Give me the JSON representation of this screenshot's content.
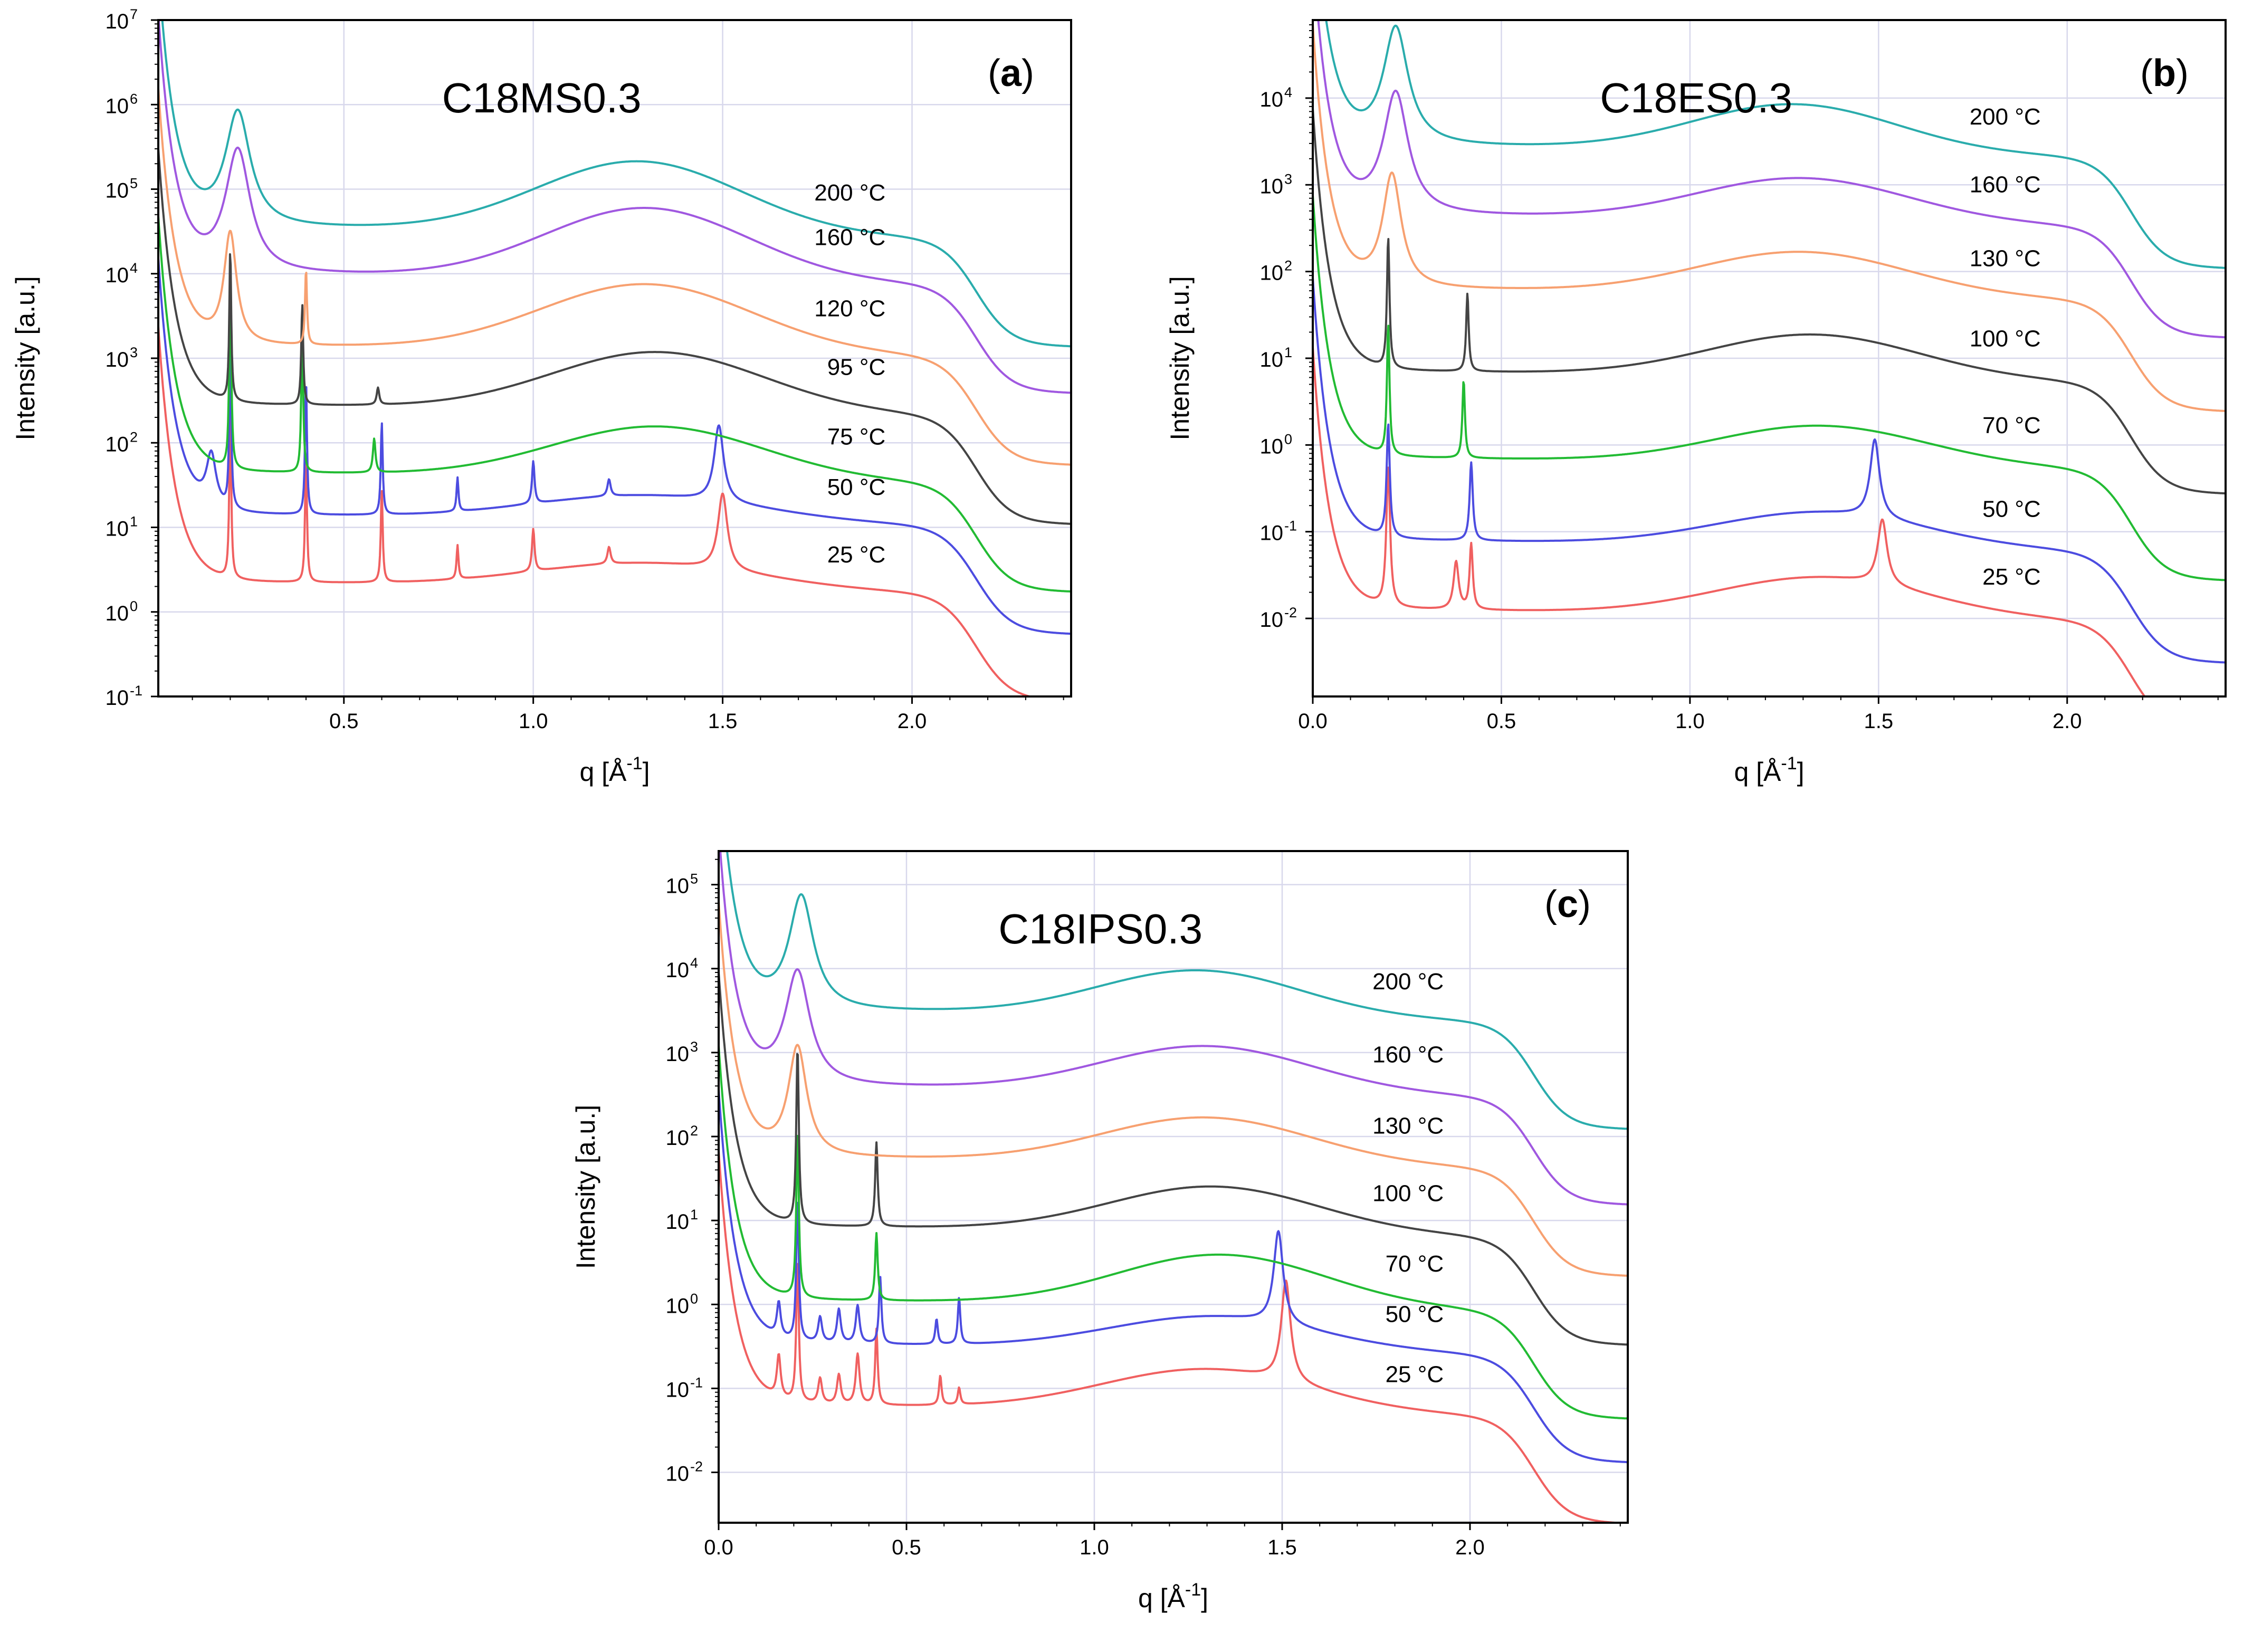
{
  "chart_data": [
    {
      "id": "a",
      "type": "line",
      "title": "C18MS0.3",
      "panel_label_open": "(",
      "panel_label_letter": "a",
      "panel_label_close": ")",
      "xlabel": "q [Å⁻¹]",
      "xlabel_prefix": "q [Å",
      "xlabel_sup": "-1",
      "xlabel_suffix": "]",
      "ylabel": "Intensity [a.u.]",
      "yscale": "log",
      "xlim": [
        0.01,
        2.42
      ],
      "ylim": [
        -1,
        7
      ],
      "x_ticks": [
        0.5,
        1.0,
        1.5,
        2.0
      ],
      "x_tick_labels": [
        "0.5",
        "1.0",
        "1.5",
        "2.0"
      ],
      "y_tick_exponents": [
        -1,
        0,
        1,
        2,
        3,
        4,
        5,
        6,
        7
      ],
      "y_tick_base": "10",
      "y_tick_labels": [
        "-1",
        "0",
        "1",
        "2",
        "3",
        "4",
        "5",
        "6",
        "7"
      ],
      "series": [
        {
          "name": "25 °C",
          "color": "#f06060",
          "base": 0.3,
          "broad_peak": {
            "x": 1.3,
            "h": 0.3,
            "w": 0.3
          },
          "peaks": [
            {
              "x": 0.2,
              "h": 2.0,
              "w": 0.003
            },
            {
              "x": 0.4,
              "h": 1.5,
              "w": 0.003
            },
            {
              "x": 0.6,
              "h": 1.1,
              "w": 0.003
            },
            {
              "x": 0.8,
              "h": 0.4,
              "w": 0.003
            },
            {
              "x": 1.0,
              "h": 0.5,
              "w": 0.004
            },
            {
              "x": 1.2,
              "h": 0.2,
              "w": 0.005
            },
            {
              "x": 1.5,
              "h": 0.9,
              "w": 0.015
            }
          ]
        },
        {
          "name": "50 °C",
          "color": "#4c4ce0",
          "base": 1.1,
          "broad_peak": {
            "x": 1.3,
            "h": 0.3,
            "w": 0.3
          },
          "peaks": [
            {
              "x": 0.15,
              "h": 0.6,
              "w": 0.015
            },
            {
              "x": 0.2,
              "h": 2.0,
              "w": 0.003
            },
            {
              "x": 0.4,
              "h": 1.6,
              "w": 0.003
            },
            {
              "x": 0.6,
              "h": 1.1,
              "w": 0.003
            },
            {
              "x": 0.8,
              "h": 0.4,
              "w": 0.003
            },
            {
              "x": 1.0,
              "h": 0.5,
              "w": 0.004
            },
            {
              "x": 1.2,
              "h": 0.2,
              "w": 0.005
            },
            {
              "x": 1.49,
              "h": 0.9,
              "w": 0.015
            }
          ]
        },
        {
          "name": "75 °C",
          "color": "#22bb33",
          "base": 1.6,
          "broad_peak": {
            "x": 1.33,
            "h": 0.62,
            "w": 0.28
          },
          "peaks": [
            {
              "x": 0.2,
              "h": 2.5,
              "w": 0.003
            },
            {
              "x": 0.39,
              "h": 1.7,
              "w": 0.003
            },
            {
              "x": 0.58,
              "h": 0.4,
              "w": 0.004
            }
          ]
        },
        {
          "name": "95 °C",
          "color": "#444444",
          "base": 2.4,
          "broad_peak": {
            "x": 1.33,
            "h": 0.7,
            "w": 0.28
          },
          "peaks": [
            {
              "x": 0.2,
              "h": 1.8,
              "w": 0.003
            },
            {
              "x": 0.39,
              "h": 1.2,
              "w": 0.003
            },
            {
              "x": 0.59,
              "h": 0.2,
              "w": 0.004
            }
          ]
        },
        {
          "name": "120 °C",
          "color": "#f7a070",
          "base": 3.1,
          "broad_peak": {
            "x": 1.3,
            "h": 0.8,
            "w": 0.28
          },
          "peaks": [
            {
              "x": 0.2,
              "h": 1.3,
              "w": 0.02
            },
            {
              "x": 0.4,
              "h": 0.9,
              "w": 0.003
            }
          ]
        },
        {
          "name": "160 °C",
          "color": "#a058e0",
          "base": 3.95,
          "broad_peak": {
            "x": 1.3,
            "h": 0.85,
            "w": 0.27
          },
          "peaks": [
            {
              "x": 0.22,
              "h": 1.45,
              "w": 0.04
            }
          ]
        },
        {
          "name": "200 °C",
          "color": "#2aacac",
          "base": 4.5,
          "broad_peak": {
            "x": 1.28,
            "h": 0.85,
            "w": 0.27
          },
          "peaks": [
            {
              "x": 0.22,
              "h": 1.35,
              "w": 0.04
            }
          ]
        }
      ]
    },
    {
      "id": "b",
      "type": "line",
      "title": "C18ES0.3",
      "panel_label_open": "(",
      "panel_label_letter": "b",
      "panel_label_close": ")",
      "xlabel": "q [Å⁻¹]",
      "xlabel_prefix": "q [Å",
      "xlabel_sup": "-1",
      "xlabel_suffix": "]",
      "ylabel": "Intensity [a.u.]",
      "yscale": "log",
      "xlim": [
        0.0,
        2.42
      ],
      "ylim": [
        -2.9,
        4.9
      ],
      "x_ticks": [
        0.0,
        0.5,
        1.0,
        1.5,
        2.0
      ],
      "x_tick_labels": [
        "0.0",
        "0.5",
        "1.0",
        "1.5",
        "2.0"
      ],
      "y_tick_exponents": [
        -2,
        -1,
        0,
        1,
        2,
        3,
        4
      ],
      "y_tick_base": "10",
      "y_tick_labels": [
        "-2",
        "-1",
        "0",
        "1",
        "2",
        "3",
        "4"
      ],
      "series": [
        {
          "name": "25 °C",
          "color": "#f06060",
          "base": -1.95,
          "broad_peak": {
            "x": 1.35,
            "h": 0.45,
            "w": 0.28
          },
          "peaks": [
            {
              "x": 0.2,
              "h": 1.6,
              "w": 0.006
            },
            {
              "x": 0.38,
              "h": 0.55,
              "w": 0.008
            },
            {
              "x": 0.42,
              "h": 0.75,
              "w": 0.005
            },
            {
              "x": 1.51,
              "h": 0.75,
              "w": 0.015
            }
          ]
        },
        {
          "name": "50 °C",
          "color": "#4c4ce0",
          "base": -1.15,
          "broad_peak": {
            "x": 1.35,
            "h": 0.4,
            "w": 0.28
          },
          "peaks": [
            {
              "x": 0.2,
              "h": 1.3,
              "w": 0.005
            },
            {
              "x": 0.42,
              "h": 0.9,
              "w": 0.005
            },
            {
              "x": 1.49,
              "h": 0.9,
              "w": 0.015
            }
          ]
        },
        {
          "name": "70 °C",
          "color": "#22bb33",
          "base": -0.2,
          "broad_peak": {
            "x": 1.35,
            "h": 0.45,
            "w": 0.28
          },
          "peaks": [
            {
              "x": 0.2,
              "h": 1.5,
              "w": 0.004
            },
            {
              "x": 0.4,
              "h": 0.9,
              "w": 0.004
            }
          ]
        },
        {
          "name": "100 °C",
          "color": "#444444",
          "base": 0.8,
          "broad_peak": {
            "x": 1.33,
            "h": 0.5,
            "w": 0.28
          },
          "peaks": [
            {
              "x": 0.2,
              "h": 1.5,
              "w": 0.004
            },
            {
              "x": 0.41,
              "h": 0.9,
              "w": 0.004
            }
          ]
        },
        {
          "name": "130 °C",
          "color": "#f7a070",
          "base": 1.75,
          "broad_peak": {
            "x": 1.3,
            "h": 0.5,
            "w": 0.28
          },
          "peaks": [
            {
              "x": 0.21,
              "h": 1.3,
              "w": 0.03
            }
          ]
        },
        {
          "name": "160 °C",
          "color": "#a058e0",
          "base": 2.6,
          "broad_peak": {
            "x": 1.3,
            "h": 0.5,
            "w": 0.28
          },
          "peaks": [
            {
              "x": 0.22,
              "h": 1.4,
              "w": 0.04
            }
          ]
        },
        {
          "name": "200 °C",
          "color": "#2aacac",
          "base": 3.4,
          "broad_peak": {
            "x": 1.28,
            "h": 0.55,
            "w": 0.27
          },
          "peaks": [
            {
              "x": 0.22,
              "h": 1.35,
              "w": 0.04
            }
          ]
        }
      ]
    },
    {
      "id": "c",
      "type": "line",
      "title": "C18IPS0.3",
      "panel_label_open": "(",
      "panel_label_letter": "c",
      "panel_label_close": ")",
      "xlabel": "q [Å⁻¹]",
      "xlabel_prefix": "q [Å",
      "xlabel_sup": "-1",
      "xlabel_suffix": "]",
      "ylabel": "Intensity [a.u.]",
      "yscale": "log",
      "xlim": [
        0.0,
        2.42
      ],
      "ylim": [
        -2.6,
        5.4
      ],
      "x_ticks": [
        0.0,
        0.5,
        1.0,
        1.5,
        2.0
      ],
      "x_tick_labels": [
        "0.0",
        "0.5",
        "1.0",
        "1.5",
        "2.0"
      ],
      "y_tick_exponents": [
        -2,
        -1,
        0,
        1,
        2,
        3,
        4,
        5
      ],
      "y_tick_base": "10",
      "y_tick_labels": [
        "-2",
        "-1",
        "0",
        "1",
        "2",
        "3",
        "4",
        "5"
      ],
      "series": [
        {
          "name": "25 °C",
          "color": "#f06060",
          "base": -1.25,
          "broad_peak": {
            "x": 1.3,
            "h": 0.5,
            "w": 0.28
          },
          "peaks": [
            {
              "x": 0.16,
              "h": 0.5,
              "w": 0.006
            },
            {
              "x": 0.21,
              "h": 1.7,
              "w": 0.004
            },
            {
              "x": 0.27,
              "h": 0.3,
              "w": 0.006
            },
            {
              "x": 0.32,
              "h": 0.35,
              "w": 0.006
            },
            {
              "x": 0.37,
              "h": 0.6,
              "w": 0.006
            },
            {
              "x": 0.42,
              "h": 0.9,
              "w": 0.004
            },
            {
              "x": 0.59,
              "h": 0.35,
              "w": 0.004
            },
            {
              "x": 0.64,
              "h": 0.2,
              "w": 0.004
            },
            {
              "x": 1.51,
              "h": 1.2,
              "w": 0.015
            }
          ]
        },
        {
          "name": "50 °C",
          "color": "#4c4ce0",
          "base": -0.52,
          "broad_peak": {
            "x": 1.32,
            "h": 0.4,
            "w": 0.28
          },
          "peaks": [
            {
              "x": 0.16,
              "h": 0.4,
              "w": 0.006
            },
            {
              "x": 0.21,
              "h": 1.7,
              "w": 0.004
            },
            {
              "x": 0.27,
              "h": 0.3,
              "w": 0.006
            },
            {
              "x": 0.32,
              "h": 0.4,
              "w": 0.006
            },
            {
              "x": 0.37,
              "h": 0.45,
              "w": 0.006
            },
            {
              "x": 0.43,
              "h": 0.8,
              "w": 0.004
            },
            {
              "x": 0.58,
              "h": 0.3,
              "w": 0.004
            },
            {
              "x": 0.64,
              "h": 0.55,
              "w": 0.004
            },
            {
              "x": 1.49,
              "h": 1.1,
              "w": 0.015
            }
          ]
        },
        {
          "name": "70 °C",
          "color": "#22bb33",
          "base": 0.0,
          "broad_peak": {
            "x": 1.34,
            "h": 0.62,
            "w": 0.28
          },
          "peaks": [
            {
              "x": 0.21,
              "h": 2.0,
              "w": 0.004
            },
            {
              "x": 0.42,
              "h": 0.8,
              "w": 0.004
            }
          ]
        },
        {
          "name": "100 °C",
          "color": "#444444",
          "base": 0.88,
          "broad_peak": {
            "x": 1.32,
            "h": 0.55,
            "w": 0.28
          },
          "peaks": [
            {
              "x": 0.21,
              "h": 2.1,
              "w": 0.004
            },
            {
              "x": 0.42,
              "h": 1.0,
              "w": 0.004
            }
          ]
        },
        {
          "name": "130 °C",
          "color": "#f7a070",
          "base": 1.7,
          "broad_peak": {
            "x": 1.3,
            "h": 0.55,
            "w": 0.28
          },
          "peaks": [
            {
              "x": 0.21,
              "h": 1.3,
              "w": 0.03
            }
          ]
        },
        {
          "name": "160 °C",
          "color": "#a058e0",
          "base": 2.55,
          "broad_peak": {
            "x": 1.3,
            "h": 0.55,
            "w": 0.28
          },
          "peaks": [
            {
              "x": 0.21,
              "h": 1.35,
              "w": 0.04
            }
          ]
        },
        {
          "name": "200 °C",
          "color": "#2aacac",
          "base": 3.45,
          "broad_peak": {
            "x": 1.28,
            "h": 0.55,
            "w": 0.27
          },
          "peaks": [
            {
              "x": 0.22,
              "h": 1.35,
              "w": 0.04
            }
          ]
        }
      ]
    }
  ]
}
